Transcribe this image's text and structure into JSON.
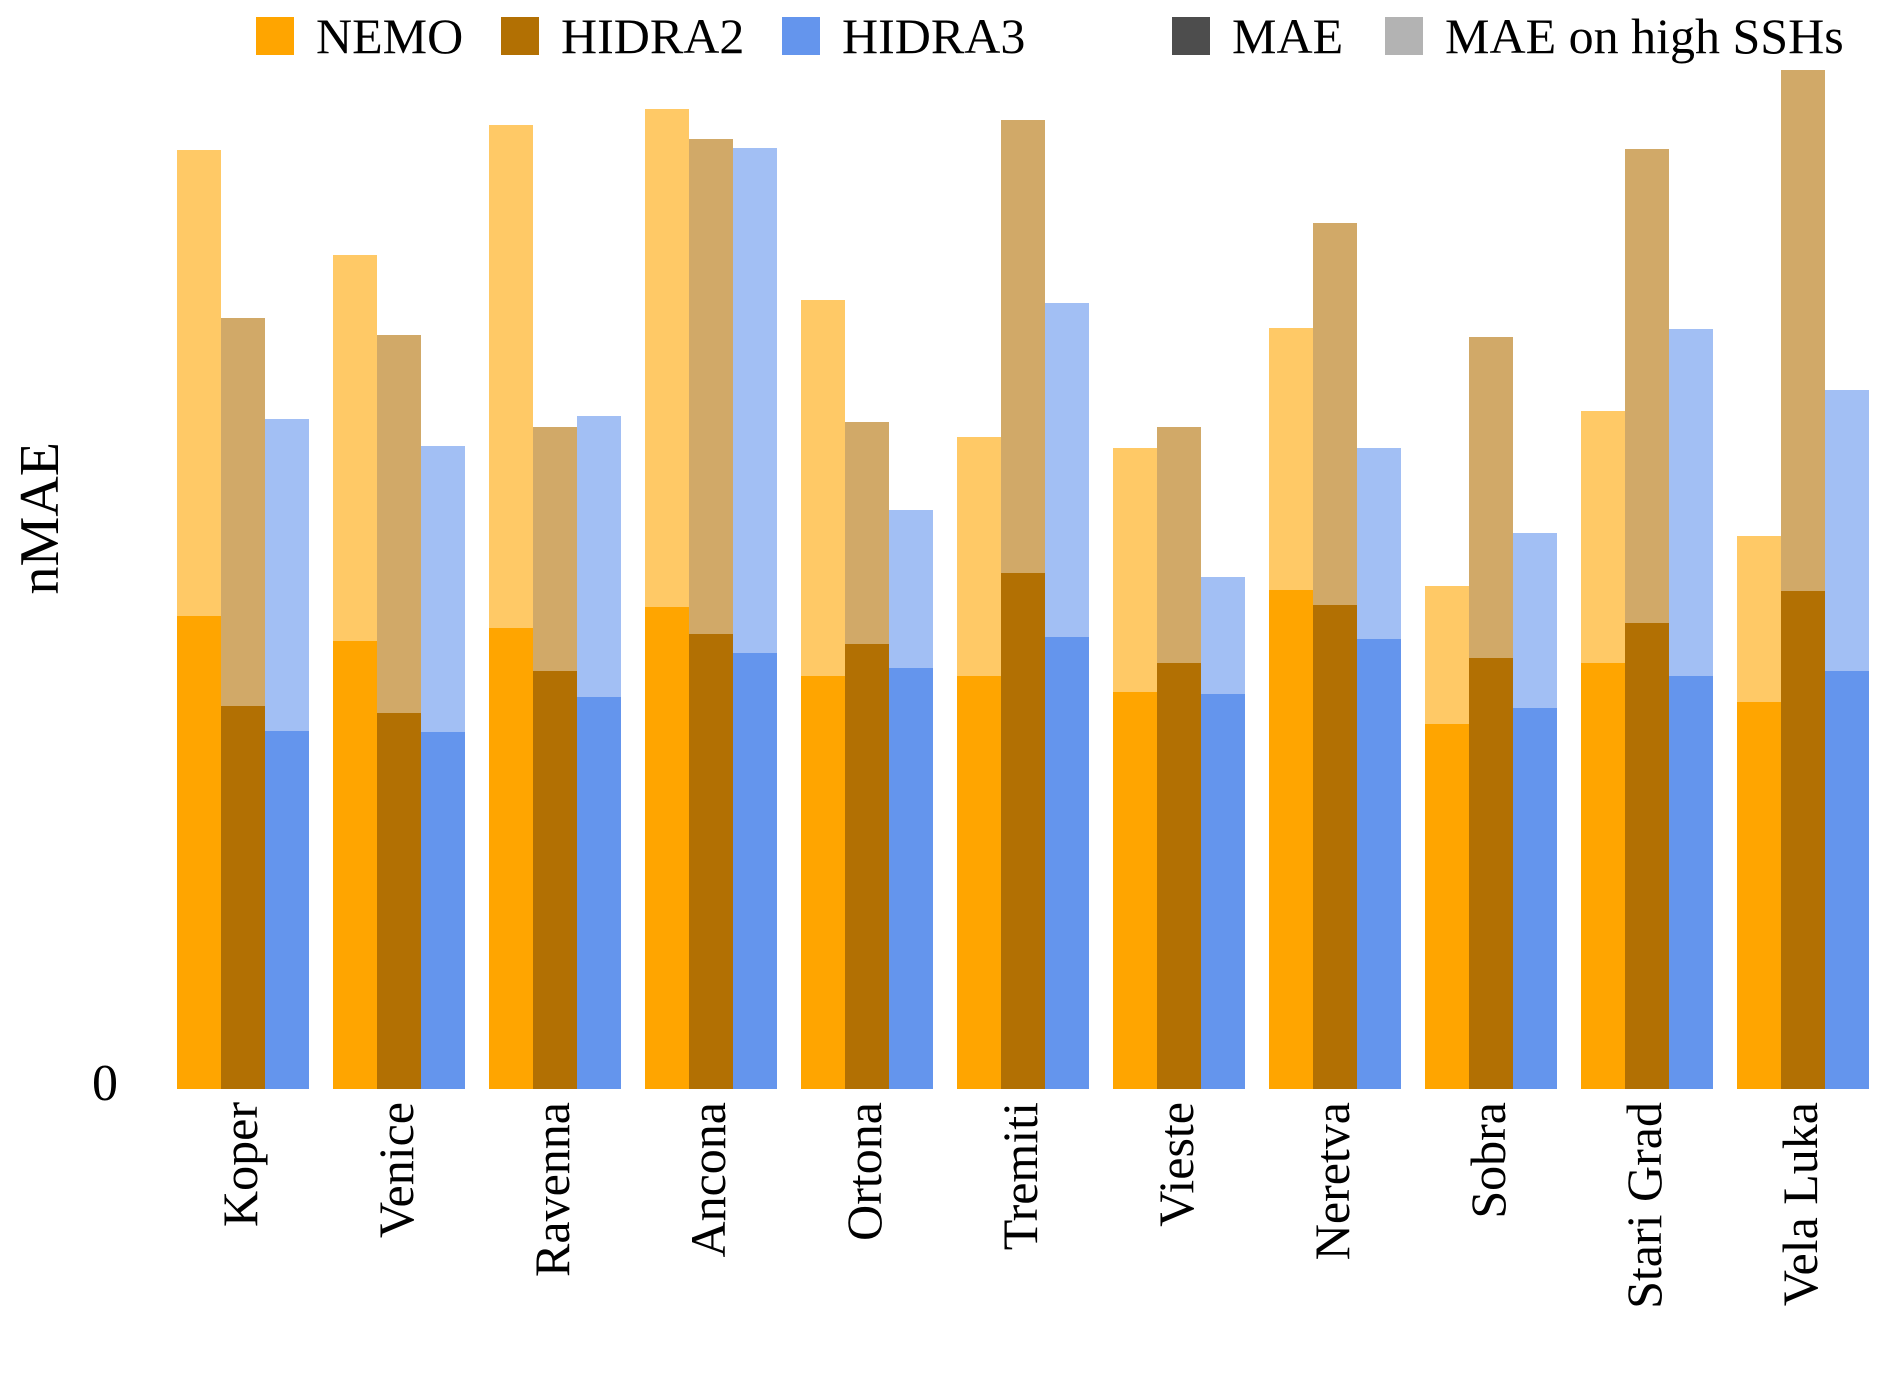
{
  "figure": {
    "ylabel": "nMAE",
    "y_tick_zero": "0",
    "background_color": "#FFFFFF",
    "text_color": "#000000"
  },
  "legend": {
    "models": [
      {
        "label": "NEMO",
        "color": "#FFA500"
      },
      {
        "label": "HIDRA2",
        "color": "#B27003"
      },
      {
        "label": "HIDRA3",
        "color": "#6495ED"
      }
    ],
    "metrics": [
      {
        "label": "MAE",
        "color": "#4D4D4D",
        "opacity": 1
      },
      {
        "label": "MAE on high SSHs",
        "color": "#B3B3B3",
        "opacity": 0.6
      }
    ]
  },
  "chart_data": {
    "type": "bar",
    "title": "",
    "xlabel": "",
    "ylabel": "nMAE",
    "y_ticks": [
      "0"
    ],
    "ylim": [
      0,
      1.03
    ],
    "grid": false,
    "legend_position": "top",
    "categories": [
      "Koper",
      "Venice",
      "Ravenna",
      "Ancona",
      "Ortona",
      "Tremiti",
      "Vieste",
      "Neretva",
      "Sobra",
      "Stari Grad",
      "Vela Luka"
    ],
    "series": [
      {
        "name": "NEMO",
        "metric": "MAE",
        "color": "#FFA500",
        "opacity": 1.0,
        "values": [
          0.458,
          0.434,
          0.447,
          0.467,
          0.4,
          0.4,
          0.385,
          0.484,
          0.354,
          0.413,
          0.375
        ]
      },
      {
        "name": "NEMO",
        "metric": "MAE on high SSHs",
        "color": "#FFA500",
        "opacity": 0.6,
        "values": [
          0.91,
          0.808,
          0.934,
          0.95,
          0.765,
          0.632,
          0.621,
          0.737,
          0.487,
          0.657,
          0.536
        ]
      },
      {
        "name": "HIDRA2",
        "metric": "MAE",
        "color": "#B27003",
        "opacity": 1.0,
        "values": [
          0.371,
          0.364,
          0.405,
          0.441,
          0.431,
          0.5,
          0.413,
          0.469,
          0.418,
          0.452,
          0.483
        ]
      },
      {
        "name": "HIDRA2",
        "metric": "MAE on high SSHs",
        "color": "#B27003",
        "opacity": 0.6,
        "values": [
          0.747,
          0.731,
          0.641,
          0.921,
          0.646,
          0.939,
          0.641,
          0.839,
          0.729,
          0.911,
          0.987
        ]
      },
      {
        "name": "HIDRA3",
        "metric": "MAE",
        "color": "#6495ED",
        "opacity": 1.0,
        "values": [
          0.347,
          0.346,
          0.38,
          0.422,
          0.408,
          0.438,
          0.383,
          0.436,
          0.369,
          0.4,
          0.405
        ]
      },
      {
        "name": "HIDRA3",
        "metric": "MAE on high SSHs",
        "color": "#6495ED",
        "opacity": 0.6,
        "values": [
          0.649,
          0.623,
          0.652,
          0.912,
          0.561,
          0.762,
          0.496,
          0.621,
          0.539,
          0.736,
          0.677
        ]
      }
    ]
  }
}
